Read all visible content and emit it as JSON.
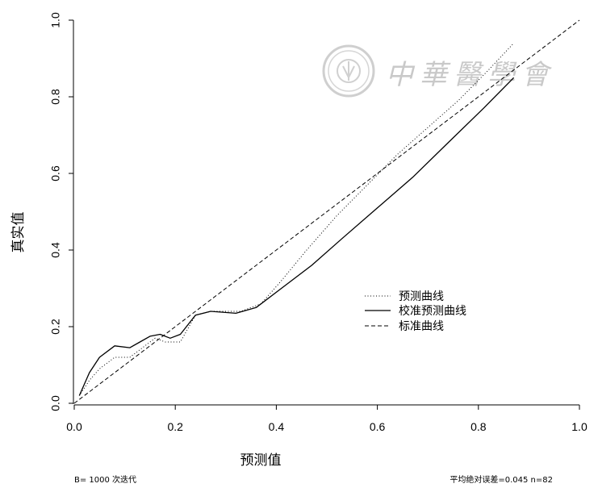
{
  "chart_data": {
    "type": "line",
    "xlabel": "预测值",
    "ylabel": "真实值",
    "xlim": [
      0,
      1
    ],
    "ylim": [
      0,
      1
    ],
    "x_ticks": [
      "0.0",
      "0.2",
      "0.4",
      "0.6",
      "0.8",
      "1.0"
    ],
    "y_ticks": [
      "0.0",
      "0.2",
      "0.4",
      "0.6",
      "0.8",
      "1.0"
    ],
    "grid": false,
    "legend_position": "center-right",
    "series": [
      {
        "name": "预测曲线",
        "style": "dotted",
        "x": [
          0.01,
          0.03,
          0.05,
          0.08,
          0.11,
          0.14,
          0.16,
          0.18,
          0.21,
          0.24,
          0.27,
          0.3,
          0.33,
          0.37,
          0.41,
          0.46,
          0.52,
          0.58,
          0.64,
          0.7,
          0.76,
          0.82,
          0.87
        ],
        "y": [
          0.02,
          0.06,
          0.09,
          0.12,
          0.12,
          0.15,
          0.17,
          0.16,
          0.16,
          0.23,
          0.24,
          0.24,
          0.24,
          0.26,
          0.32,
          0.4,
          0.49,
          0.57,
          0.65,
          0.72,
          0.79,
          0.87,
          0.94
        ]
      },
      {
        "name": "校准预测曲线",
        "style": "solid",
        "x": [
          0.01,
          0.03,
          0.05,
          0.08,
          0.11,
          0.13,
          0.15,
          0.17,
          0.19,
          0.21,
          0.24,
          0.27,
          0.32,
          0.36,
          0.41,
          0.47,
          0.53,
          0.6,
          0.67,
          0.74,
          0.81,
          0.87
        ],
        "y": [
          0.02,
          0.08,
          0.12,
          0.15,
          0.145,
          0.16,
          0.175,
          0.18,
          0.17,
          0.18,
          0.23,
          0.24,
          0.235,
          0.25,
          0.3,
          0.36,
          0.43,
          0.51,
          0.59,
          0.68,
          0.77,
          0.85
        ]
      },
      {
        "name": "标准曲线",
        "style": "dashed",
        "x": [
          0,
          1
        ],
        "y": [
          0,
          1
        ]
      }
    ]
  },
  "watermark": {
    "text": "中華醫學會",
    "color": "#c9c9c9"
  },
  "footnotes": {
    "left": "B= 1000 次迭代",
    "right": "平均绝对误差=0.045 n=82"
  }
}
